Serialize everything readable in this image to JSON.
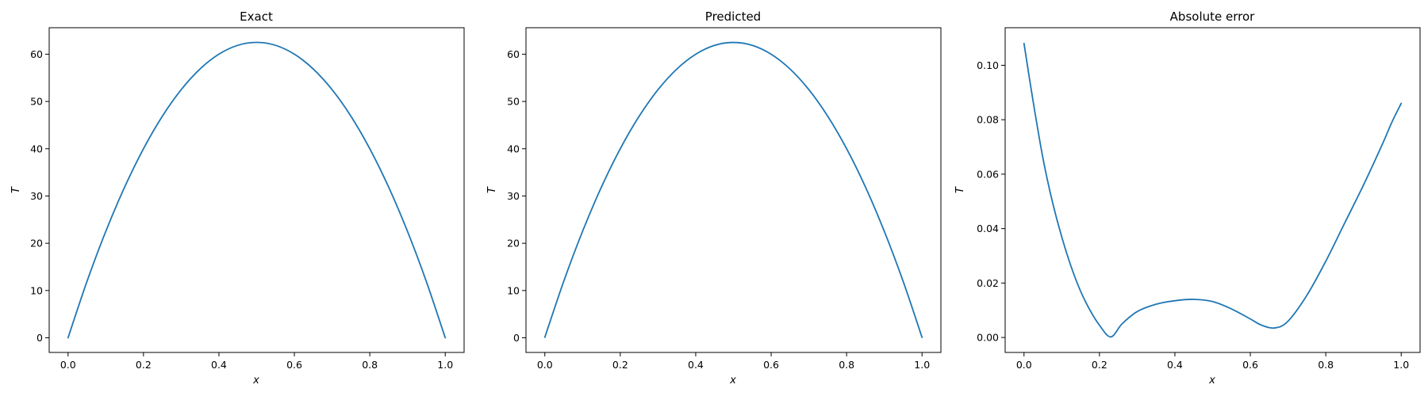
{
  "chart_data": [
    {
      "type": "line",
      "title": "Exact",
      "xlabel": "x",
      "ylabel": "T",
      "xlim": [
        -0.05,
        1.05
      ],
      "ylim": [
        -3.1,
        65.6
      ],
      "xticks": [
        0.0,
        0.2,
        0.4,
        0.6,
        0.8,
        1.0
      ],
      "xtick_labels": [
        "0.0",
        "0.2",
        "0.4",
        "0.6",
        "0.8",
        "1.0"
      ],
      "yticks": [
        0,
        10,
        20,
        30,
        40,
        50,
        60
      ],
      "ytick_labels": [
        "0",
        "10",
        "20",
        "30",
        "40",
        "50",
        "60"
      ],
      "grid": false,
      "color": "#1f77b4",
      "x": [
        0.0,
        0.05,
        0.1,
        0.15,
        0.2,
        0.25,
        0.3,
        0.35,
        0.4,
        0.45,
        0.5,
        0.55,
        0.6,
        0.65,
        0.7,
        0.75,
        0.8,
        0.85,
        0.9,
        0.95,
        1.0
      ],
      "y": [
        0.0,
        11.88,
        22.5,
        31.88,
        40.0,
        46.88,
        52.5,
        56.88,
        60.0,
        61.88,
        62.5,
        61.88,
        60.0,
        56.88,
        52.5,
        46.88,
        40.0,
        31.88,
        22.5,
        11.88,
        0.0
      ]
    },
    {
      "type": "line",
      "title": "Predicted",
      "xlabel": "x",
      "ylabel": "T",
      "xlim": [
        -0.05,
        1.05
      ],
      "ylim": [
        -3.1,
        65.6
      ],
      "xticks": [
        0.0,
        0.2,
        0.4,
        0.6,
        0.8,
        1.0
      ],
      "xtick_labels": [
        "0.0",
        "0.2",
        "0.4",
        "0.6",
        "0.8",
        "1.0"
      ],
      "yticks": [
        0,
        10,
        20,
        30,
        40,
        50,
        60
      ],
      "ytick_labels": [
        "0",
        "10",
        "20",
        "30",
        "40",
        "50",
        "60"
      ],
      "grid": false,
      "color": "#1f77b4",
      "x": [
        0.0,
        0.05,
        0.1,
        0.15,
        0.2,
        0.25,
        0.3,
        0.35,
        0.4,
        0.45,
        0.5,
        0.55,
        0.6,
        0.65,
        0.7,
        0.75,
        0.8,
        0.85,
        0.9,
        0.95,
        1.0
      ],
      "y": [
        0.11,
        11.92,
        22.52,
        31.89,
        40.0,
        46.87,
        52.49,
        56.87,
        59.99,
        61.87,
        62.49,
        61.87,
        59.99,
        56.87,
        52.49,
        46.88,
        40.01,
        31.9,
        22.53,
        11.93,
        0.09
      ]
    },
    {
      "type": "line",
      "title": "Absolute error",
      "xlabel": "x",
      "ylabel": "T",
      "xlim": [
        -0.05,
        1.05
      ],
      "ylim": [
        -0.0055,
        0.1138
      ],
      "xticks": [
        0.0,
        0.2,
        0.4,
        0.6,
        0.8,
        1.0
      ],
      "xtick_labels": [
        "0.0",
        "0.2",
        "0.4",
        "0.6",
        "0.8",
        "1.0"
      ],
      "yticks": [
        0.0,
        0.02,
        0.04,
        0.06,
        0.08,
        0.1
      ],
      "ytick_labels": [
        "0.00",
        "0.02",
        "0.04",
        "0.06",
        "0.08",
        "0.10"
      ],
      "grid": false,
      "color": "#1f77b4",
      "x": [
        0.0,
        0.025,
        0.05,
        0.075,
        0.1,
        0.125,
        0.15,
        0.175,
        0.2,
        0.23,
        0.26,
        0.3,
        0.35,
        0.4,
        0.45,
        0.5,
        0.55,
        0.6,
        0.63,
        0.665,
        0.7,
        0.75,
        0.8,
        0.85,
        0.9,
        0.95,
        0.975,
        1.0
      ],
      "y": [
        0.108,
        0.086,
        0.066,
        0.05,
        0.037,
        0.026,
        0.017,
        0.01,
        0.0045,
        0.0002,
        0.005,
        0.0095,
        0.0122,
        0.0135,
        0.014,
        0.0132,
        0.0105,
        0.0068,
        0.0045,
        0.0035,
        0.006,
        0.0155,
        0.028,
        0.042,
        0.056,
        0.071,
        0.079,
        0.086
      ]
    }
  ]
}
